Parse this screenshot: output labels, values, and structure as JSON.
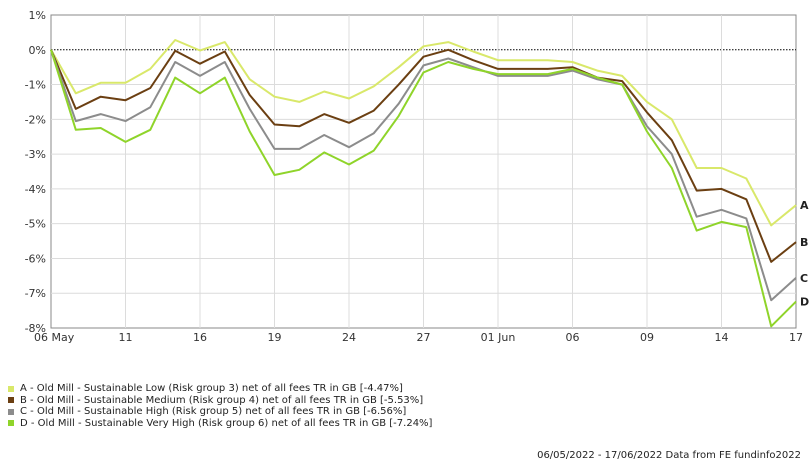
{
  "chart_data": {
    "type": "line",
    "y_ticks": [
      "1%",
      "0%",
      "-1%",
      "-2%",
      "-3%",
      "-4%",
      "-5%",
      "-6%",
      "-7%",
      "-8%"
    ],
    "y_tick_values": [
      1,
      0,
      -1,
      -2,
      -3,
      -4,
      -5,
      -6,
      -7,
      -8
    ],
    "ylim": [
      -8,
      1
    ],
    "x_tick_labels": [
      "06 May",
      "11",
      "16",
      "19",
      "24",
      "27",
      "01 Jun",
      "06",
      "09",
      "14",
      "17"
    ],
    "x_tick_index": [
      0,
      3,
      6,
      9,
      12,
      15,
      18,
      21,
      24,
      27,
      30
    ],
    "x_dates": [
      "2022-05-06",
      "2022-05-09",
      "2022-05-10",
      "2022-05-11",
      "2022-05-12",
      "2022-05-13",
      "2022-05-16",
      "2022-05-17",
      "2022-05-18",
      "2022-05-19",
      "2022-05-20",
      "2022-05-23",
      "2022-05-24",
      "2022-05-25",
      "2022-05-26",
      "2022-05-27",
      "2022-05-30",
      "2022-05-31",
      "2022-06-01",
      "2022-06-02",
      "2022-06-03",
      "2022-06-06",
      "2022-06-07",
      "2022-06-08",
      "2022-06-09",
      "2022-06-10",
      "2022-06-13",
      "2022-06-14",
      "2022-06-15",
      "2022-06-16",
      "2022-06-17"
    ],
    "grid": true,
    "zero_line": "dotted",
    "series": [
      {
        "tag": "A",
        "color": "#d9e86a",
        "values": [
          0.0,
          -1.25,
          -0.95,
          -0.95,
          -0.55,
          0.28,
          -0.02,
          0.22,
          -0.85,
          -1.35,
          -1.5,
          -1.2,
          -1.4,
          -1.05,
          -0.5,
          0.1,
          0.22,
          -0.05,
          -0.3,
          -0.3,
          -0.3,
          -0.35,
          -0.6,
          -0.75,
          -1.5,
          -2.0,
          -3.4,
          -3.4,
          -3.7,
          -5.05,
          -4.47
        ]
      },
      {
        "tag": "B",
        "color": "#6b3f12",
        "values": [
          0.0,
          -1.7,
          -1.35,
          -1.45,
          -1.1,
          -0.03,
          -0.4,
          -0.05,
          -1.3,
          -2.15,
          -2.2,
          -1.85,
          -2.1,
          -1.75,
          -1.0,
          -0.2,
          0.0,
          -0.3,
          -0.55,
          -0.55,
          -0.55,
          -0.5,
          -0.8,
          -0.9,
          -1.8,
          -2.6,
          -4.05,
          -4.0,
          -4.3,
          -6.1,
          -5.53
        ]
      },
      {
        "tag": "C",
        "color": "#8c8c8c",
        "values": [
          0.0,
          -2.05,
          -1.85,
          -2.05,
          -1.65,
          -0.35,
          -0.75,
          -0.35,
          -1.7,
          -2.85,
          -2.85,
          -2.45,
          -2.8,
          -2.4,
          -1.55,
          -0.45,
          -0.25,
          -0.5,
          -0.75,
          -0.75,
          -0.75,
          -0.6,
          -0.85,
          -1.0,
          -2.2,
          -3.0,
          -4.8,
          -4.6,
          -4.85,
          -7.2,
          -6.56
        ]
      },
      {
        "tag": "D",
        "color": "#8fd42a",
        "values": [
          0.0,
          -2.3,
          -2.25,
          -2.65,
          -2.3,
          -0.8,
          -1.25,
          -0.8,
          -2.35,
          -3.6,
          -3.45,
          -2.95,
          -3.3,
          -2.9,
          -1.9,
          -0.65,
          -0.35,
          -0.55,
          -0.7,
          -0.7,
          -0.7,
          -0.55,
          -0.8,
          -1.0,
          -2.35,
          -3.4,
          -5.2,
          -4.95,
          -5.1,
          -7.95,
          -7.24
        ]
      }
    ]
  },
  "legend": [
    {
      "label": "A - Old Mill - Sustainable Low (Risk group 3) net of all fees TR in GB [-4.47%]",
      "color": "#d9e86a"
    },
    {
      "label": "B - Old Mill - Sustainable Medium (Risk group 4) net of all fees TR in GB [-5.53%]",
      "color": "#6b3f12"
    },
    {
      "label": "C - Old Mill - Sustainable High (Risk group 5) net of all fees TR in GB [-6.56%]",
      "color": "#8c8c8c"
    },
    {
      "label": "D - Old Mill - Sustainable Very High (Risk group 6) net of all fees TR in GB [-7.24%]",
      "color": "#8fd42a"
    }
  ],
  "footer": {
    "text": "06/05/2022 - 17/06/2022 Data from FE fundinfo2022"
  }
}
